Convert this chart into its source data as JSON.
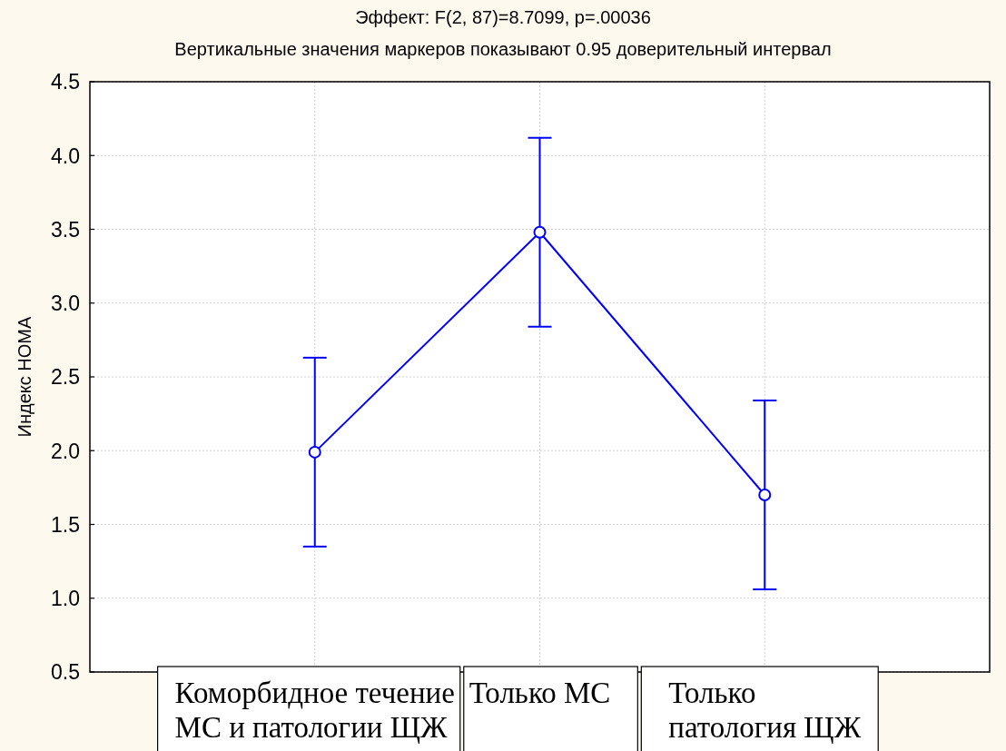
{
  "chart_data": {
    "type": "line",
    "title": "Эффект: F(2, 87)=8.7099, p=.00036",
    "subtitle": "Вертикальные значения маркеров показывают 0.95 доверительный интервал",
    "ylabel": "Индекс HOMA",
    "categories": [
      "Коморбидное течение МС и патологии ЩЖ",
      "Только МС",
      "Только патология ЩЖ"
    ],
    "values": [
      1.99,
      3.48,
      1.7
    ],
    "errors": [
      0.64,
      0.64,
      0.64
    ],
    "color": "#0000ff",
    "ylim": [
      0.5,
      4.5
    ],
    "yticks": [
      0.5,
      {
        "value": 1,
        "label": "1.0"
      },
      1.5,
      {
        "value": 2,
        "label": "2.0"
      },
      2.5,
      {
        "value": 3,
        "label": "3.0"
      },
      3.5,
      {
        "value": 4,
        "label": "4.0"
      },
      4.5
    ],
    "grid": true,
    "marker": "circle",
    "line_style": "solid"
  }
}
